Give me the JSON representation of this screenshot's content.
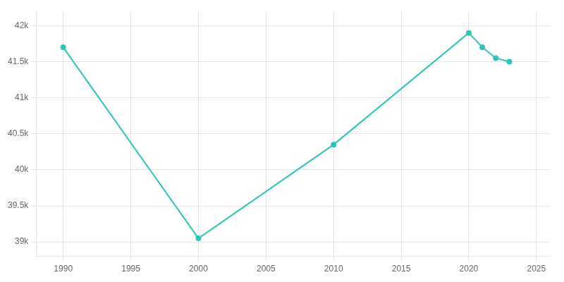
{
  "chart_data": {
    "type": "line",
    "x": [
      1990,
      2000,
      2010,
      2020,
      2021,
      2022,
      2023
    ],
    "series": [
      {
        "values": [
          41700,
          39050,
          40350,
          41900,
          41700,
          41550,
          41500
        ],
        "color": "#2ec4b6",
        "marker": "circle",
        "line_style": "solid"
      }
    ],
    "xlim": [
      1988,
      2026
    ],
    "xticks": [
      1990,
      1995,
      2000,
      2005,
      2010,
      2015,
      2020,
      2025
    ],
    "ylim": [
      38800,
      42200
    ],
    "yticks": [
      {
        "value": 39000,
        "label": "39k"
      },
      {
        "value": 39500,
        "label": "39.5k"
      },
      {
        "value": 40000,
        "label": "40k"
      },
      {
        "value": 40500,
        "label": "40.5k"
      },
      {
        "value": 41000,
        "label": "41k"
      },
      {
        "value": 41500,
        "label": "41.5k"
      },
      {
        "value": 42000,
        "label": "42k"
      }
    ],
    "grid": true
  }
}
